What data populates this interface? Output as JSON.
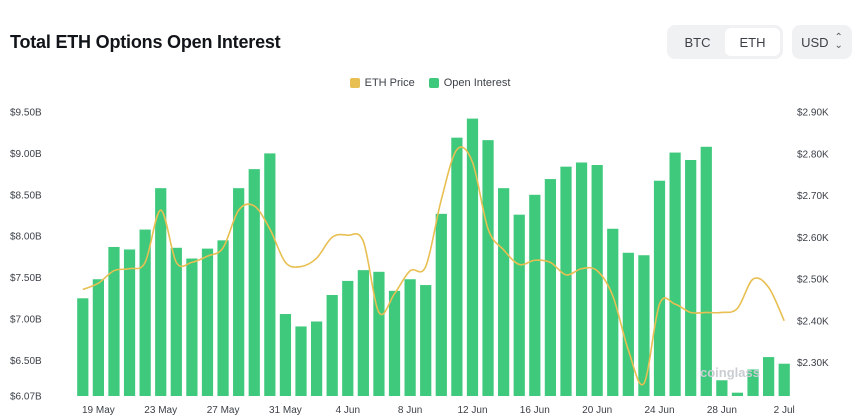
{
  "header": {
    "title": "Total ETH Options Open Interest",
    "asset_tabs": [
      {
        "label": "BTC",
        "active": false
      },
      {
        "label": "ETH",
        "active": true
      }
    ],
    "currency": "USD"
  },
  "watermark": "coinglass",
  "colors": {
    "bar": "#3ec97c",
    "line": "#e8bf52",
    "text": "#1f2329"
  },
  "chart_data": {
    "type": "bar",
    "legend_position": "top-center",
    "grid": false,
    "x_tick_labels": [
      "19 May",
      "23 May",
      "27 May",
      "31 May",
      "4 Jun",
      "8 Jun",
      "12 Jun",
      "16 Jun",
      "20 Jun",
      "24 Jun",
      "28 Jun",
      "2 Jul"
    ],
    "x_tick_indices": [
      1,
      5,
      9,
      13,
      17,
      21,
      25,
      29,
      33,
      37,
      41,
      45
    ],
    "y_left": {
      "min": 6.07,
      "max": 9.5,
      "ticks": [
        "$6.07B",
        "$6.50B",
        "$7.00B",
        "$7.50B",
        "$8.00B",
        "$8.50B",
        "$9.00B",
        "$9.50B"
      ],
      "tick_values": [
        6.07,
        6.5,
        7.0,
        7.5,
        8.0,
        8.5,
        9.0,
        9.5
      ]
    },
    "y_right": {
      "min": 2.22,
      "max": 2.9,
      "ticks": [
        "$2.30K",
        "$2.40K",
        "$2.50K",
        "$2.60K",
        "$2.70K",
        "$2.80K",
        "$2.90K"
      ],
      "tick_values": [
        2.3,
        2.4,
        2.5,
        2.6,
        2.7,
        2.8,
        2.9
      ]
    },
    "series": [
      {
        "name": "Open Interest",
        "type": "bar",
        "axis": "left",
        "values": [
          7.25,
          7.48,
          7.87,
          7.84,
          8.08,
          8.58,
          7.86,
          7.73,
          7.85,
          7.95,
          8.58,
          8.81,
          9.0,
          7.06,
          6.91,
          6.97,
          7.29,
          7.46,
          7.59,
          7.57,
          7.34,
          7.48,
          7.41,
          8.27,
          9.19,
          9.42,
          9.16,
          8.58,
          8.26,
          8.5,
          8.69,
          8.84,
          8.89,
          8.86,
          8.09,
          7.8,
          7.77,
          8.67,
          9.01,
          8.92,
          9.08,
          6.26,
          6.11,
          6.39,
          6.54,
          6.46
        ]
      },
      {
        "name": "ETH Price",
        "type": "line",
        "axis": "right",
        "values": [
          2.475,
          2.49,
          2.52,
          2.525,
          2.54,
          2.665,
          2.54,
          2.54,
          2.555,
          2.575,
          2.665,
          2.675,
          2.62,
          2.54,
          2.53,
          2.55,
          2.6,
          2.605,
          2.59,
          2.42,
          2.465,
          2.52,
          2.53,
          2.69,
          2.81,
          2.78,
          2.62,
          2.57,
          2.535,
          2.545,
          2.54,
          2.51,
          2.525,
          2.52,
          2.46,
          2.33,
          2.25,
          2.44,
          2.44,
          2.42,
          2.42,
          2.42,
          2.43,
          2.5,
          2.48,
          2.4
        ]
      }
    ]
  }
}
